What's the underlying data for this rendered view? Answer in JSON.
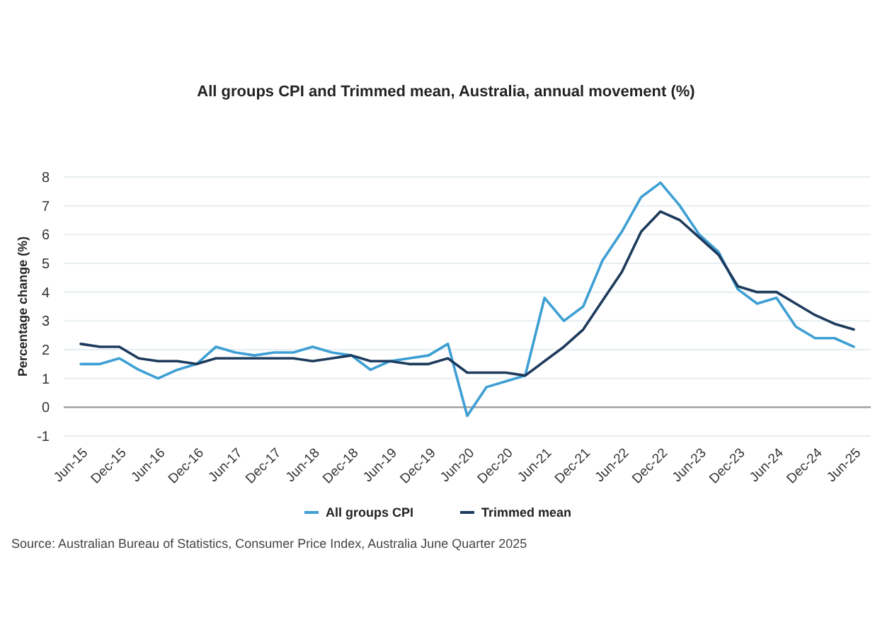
{
  "chart_data": {
    "type": "line",
    "title": "All groups CPI and Trimmed mean, Australia, annual movement (%)",
    "ylabel": "Percentage change (%)",
    "categories": [
      "Jun-15",
      null,
      "Dec-15",
      null,
      "Jun-16",
      null,
      "Dec-16",
      null,
      "Jun-17",
      null,
      "Dec-17",
      null,
      "Jun-18",
      null,
      "Dec-18",
      null,
      "Jun-19",
      null,
      "Dec-19",
      null,
      "Jun-20",
      null,
      "Dec-20",
      null,
      "Jun-21",
      null,
      "Dec-21",
      null,
      "Jun-22",
      null,
      "Dec-22",
      null,
      "Jun-23",
      null,
      "Dec-23",
      null,
      "Jun-24",
      null,
      "Dec-24",
      null,
      "Jun-25"
    ],
    "series": [
      {
        "name": "All groups CPI",
        "color": "#3d9fd3",
        "values": [
          1.5,
          1.5,
          1.7,
          1.3,
          1.0,
          1.3,
          1.5,
          2.1,
          1.9,
          1.8,
          1.9,
          1.9,
          2.1,
          1.9,
          1.8,
          1.3,
          1.6,
          1.7,
          1.8,
          2.2,
          -0.3,
          0.7,
          0.9,
          1.1,
          3.8,
          3.0,
          3.5,
          5.1,
          6.1,
          7.3,
          7.8,
          7.0,
          6.0,
          5.4,
          4.1,
          3.6,
          3.8,
          2.8,
          2.4,
          2.4,
          2.1
        ]
      },
      {
        "name": "Trimmed mean",
        "color": "#1d3b5c",
        "values": [
          2.2,
          2.1,
          2.1,
          1.7,
          1.6,
          1.6,
          1.5,
          1.7,
          1.7,
          1.7,
          1.7,
          1.7,
          1.6,
          1.7,
          1.8,
          1.6,
          1.6,
          1.5,
          1.5,
          1.7,
          1.2,
          1.2,
          1.2,
          1.1,
          1.6,
          2.1,
          2.7,
          3.7,
          4.7,
          6.1,
          6.8,
          6.5,
          5.9,
          5.3,
          4.2,
          4.0,
          4.0,
          3.6,
          3.2,
          2.9,
          2.7
        ]
      }
    ],
    "ylim": [
      -1,
      8
    ],
    "yticks": [
      -1,
      0,
      1,
      2,
      3,
      4,
      5,
      6,
      7,
      8
    ],
    "grid": "y",
    "legend": "bottom",
    "line_style": "solid",
    "ref_lines": [
      {
        "axis": "y",
        "value": 0,
        "color": "#999999"
      }
    ],
    "annotations": [
      "Source: Australian Bureau of Statistics, Consumer Price Index, Australia June Quarter 2025"
    ]
  }
}
